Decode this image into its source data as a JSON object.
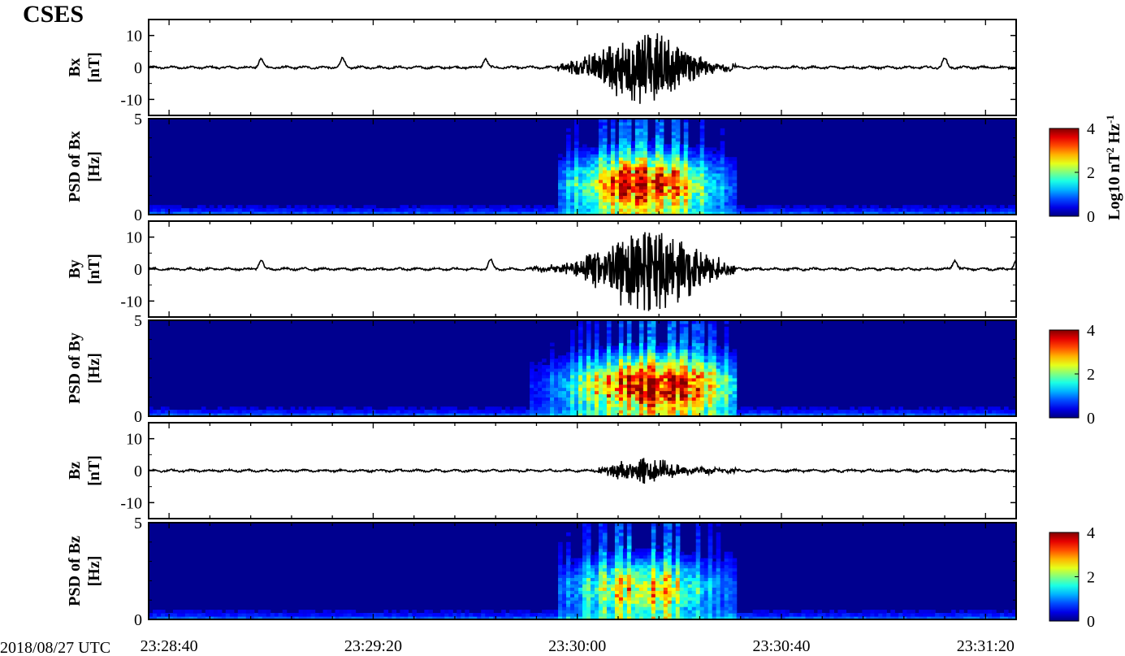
{
  "title": "CSES",
  "date_label": "2018/08/27 UTC",
  "colorbar": {
    "label_main": "Log10 nT",
    "label_sup1": "2",
    "label_mid": " Hz",
    "label_sup2": "-1",
    "range": [
      0,
      4
    ],
    "ticks": [
      "0",
      "2",
      "4"
    ],
    "colormap": "jet"
  },
  "chart_data": {
    "type": "multi-panel time series with spectrograms",
    "time_axis": {
      "start": "23:28:36",
      "end": "23:31:26",
      "tick_labels": [
        "23:28:40",
        "23:29:20",
        "23:30:00",
        "23:30:40",
        "23:31:20"
      ],
      "tick_seconds_after_start": [
        4,
        44,
        84,
        124,
        164
      ],
      "minor_tick_step_s": 8
    },
    "panels": [
      {
        "kind": "line",
        "component": "Bx",
        "ylabel_1": "Bx",
        "ylabel_2": "[nT]",
        "ylim": [
          -15,
          15
        ],
        "yticks": [
          "-10",
          "0",
          "10"
        ],
        "yticks_values": [
          -10,
          0,
          10
        ],
        "burst": {
          "start_s": 80,
          "end_s": 115,
          "peak_s": 97,
          "peak_amplitude": 12
        },
        "small_events_s": [
          22,
          38,
          66,
          156
        ]
      },
      {
        "kind": "spectrogram",
        "component": "Bx",
        "ylabel_1": "PSD of Bx",
        "ylabel_2": "[Hz]",
        "ylim": [
          0,
          5
        ],
        "yticks": [
          "0",
          "5"
        ],
        "yticks_values": [
          0,
          5
        ],
        "burst": {
          "start_s": 80,
          "end_s": 115,
          "peak_s": 97,
          "max_log10_psd": 3.6
        }
      },
      {
        "kind": "line",
        "component": "By",
        "ylabel_1": "By",
        "ylabel_2": "[nT]",
        "ylim": [
          -15,
          15
        ],
        "yticks": [
          "-10",
          "0",
          "10"
        ],
        "yticks_values": [
          -10,
          0,
          10
        ],
        "burst": {
          "start_s": 75,
          "end_s": 115,
          "peak_s": 98,
          "peak_amplitude": 14
        },
        "small_events_s": [
          22,
          67,
          158,
          170
        ]
      },
      {
        "kind": "spectrogram",
        "component": "By",
        "ylabel_1": "PSD of By",
        "ylabel_2": "[Hz]",
        "ylim": [
          0,
          5
        ],
        "yticks": [
          "0",
          "5"
        ],
        "yticks_values": [
          0,
          5
        ],
        "burst": {
          "start_s": 75,
          "end_s": 115,
          "peak_s": 99,
          "max_log10_psd": 3.8
        }
      },
      {
        "kind": "line",
        "component": "Bz",
        "ylabel_1": "Bz",
        "ylabel_2": "[nT]",
        "ylim": [
          -15,
          15
        ],
        "yticks": [
          "-10",
          "0",
          "10"
        ],
        "yticks_values": [
          -10,
          0,
          10
        ],
        "burst": {
          "start_s": 88,
          "end_s": 115,
          "peak_s": 97,
          "peak_amplitude": 4
        },
        "small_events_s": []
      },
      {
        "kind": "spectrogram",
        "component": "Bz",
        "ylabel_1": "PSD of Bz",
        "ylabel_2": "[Hz]",
        "ylim": [
          0,
          5
        ],
        "yticks": [
          "0",
          "5"
        ],
        "yticks_values": [
          0,
          5
        ],
        "burst": {
          "start_s": 80,
          "end_s": 115,
          "peak_s": 97,
          "max_log10_psd": 2.6
        }
      }
    ]
  }
}
